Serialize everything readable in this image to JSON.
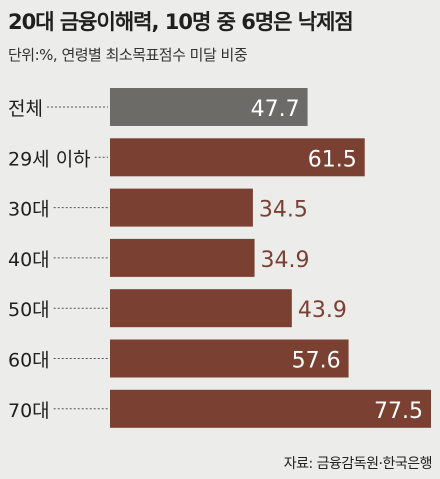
{
  "header": {
    "title": "20대 금융이해력, 10명 중 6명은 낙제점",
    "subtitle": "단위:%, 연령별 최소목표점수 미달 비중"
  },
  "source": "자료: 금융감독원·한국은행",
  "colors": {
    "background": "#ececea",
    "total_bar": "#6c6b67",
    "age_bar": "#7a4132",
    "label_inside": "#ffffff",
    "label_outside": "#7a4132",
    "leader_line": "#555555"
  },
  "chart_data": {
    "type": "bar",
    "orientation": "horizontal",
    "title": "20대 금융이해력, 10명 중 6명은 낙제점",
    "subtitle": "단위:%, 연령별 최소목표점수 미달 비중",
    "categories": [
      "전체",
      "29세 이하",
      "30대",
      "40대",
      "50대",
      "60대",
      "70대"
    ],
    "values": [
      47.7,
      61.5,
      34.5,
      34.9,
      43.9,
      57.6,
      77.5
    ],
    "value_labels": [
      "47.7",
      "61.5",
      "34.5",
      "34.9",
      "43.9",
      "57.6",
      "77.5"
    ],
    "xlim": [
      0,
      77.5
    ],
    "grid": false,
    "legend": "none",
    "highlight_category": "전체"
  }
}
